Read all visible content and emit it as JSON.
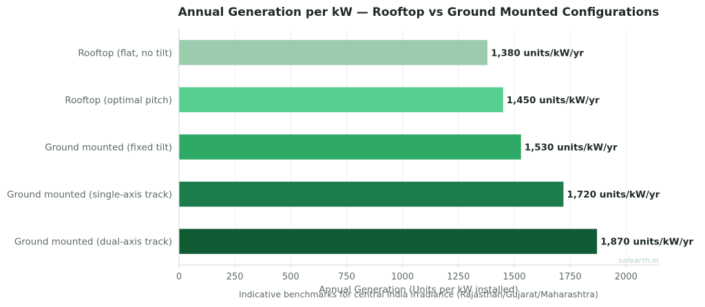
{
  "chart_data": {
    "type": "bar",
    "orientation": "horizontal",
    "title": "Annual Generation per kW — Rooftop vs Ground Mounted Configurations",
    "xlabel": "Annual Generation (Units per kW installed)",
    "subtitle": "Indicative benchmarks for central India irradiance (Rajasthan/Gujarat/Maharashtra)",
    "watermark": "safearth.in",
    "categories": [
      "Rooftop (flat, no tilt)",
      "Rooftop (optimal pitch)",
      "Ground mounted (fixed tilt)",
      "Ground mounted (single-axis track)",
      "Ground mounted (dual-axis track)"
    ],
    "values": [
      1380,
      1450,
      1530,
      1720,
      1870
    ],
    "value_labels": [
      "1,380 units/kW/yr",
      "1,450 units/kW/yr",
      "1,530 units/kW/yr",
      "1,720 units/kW/yr",
      "1,870 units/kW/yr"
    ],
    "colors": [
      "#9ccbad",
      "#56cf90",
      "#2ea966",
      "#1c7c4b",
      "#105a34"
    ],
    "xlim": [
      0,
      2150
    ],
    "xticks": [
      0,
      250,
      500,
      750,
      1000,
      1250,
      1500,
      1750,
      2000
    ],
    "grid": true
  }
}
